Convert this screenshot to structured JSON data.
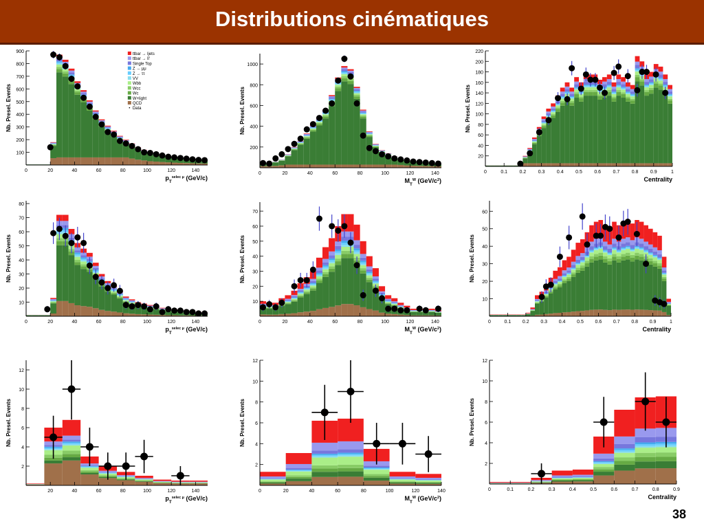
{
  "slide": {
    "title": "Distributions cinématiques",
    "page_number": "38"
  },
  "colors": {
    "title_bar": "#9b3300",
    "ttbar_ljets": "#f02020",
    "ttbar_ll": "#9999ee",
    "single_top": "#7777dd",
    "z_mumu": "#44aaee",
    "z_tautau": "#66ccff",
    "vv": "#88ddee",
    "wbb": "#aaee88",
    "wcc": "#88cc66",
    "wc": "#66aa44",
    "w_light": "#3a7d35",
    "qcd": "#a0704a",
    "data": "#000000",
    "error_bar": "#4444cc"
  },
  "chart_data": [
    {
      "type": "bar",
      "stacked": true,
      "xlabel": "p_T^{selec μ} (GeV/c)",
      "ylabel": "Nb. Presel. Events",
      "xlim": [
        0,
        150
      ],
      "ylim": [
        0,
        900
      ],
      "xticks": [
        0,
        20,
        40,
        60,
        80,
        100,
        120,
        140
      ],
      "yticks": [
        100,
        200,
        300,
        400,
        500,
        600,
        700,
        800,
        900
      ],
      "legend": {
        "position": "top-right",
        "entries": [
          "ttbar → ljets",
          "ttbar → ll'",
          "Single Top",
          "Z → μμ",
          "Z → ττ",
          "VV",
          "Wbb",
          "Wcc",
          "Wc",
          "W+light",
          "QCD",
          "Data"
        ]
      },
      "bins": [
        0,
        5,
        10,
        15,
        20,
        25,
        30,
        35,
        40,
        45,
        50,
        55,
        60,
        65,
        70,
        75,
        80,
        85,
        90,
        95,
        100,
        105,
        110,
        115,
        120,
        125,
        130,
        135,
        140,
        145,
        150
      ],
      "totals": [
        5,
        5,
        5,
        5,
        180,
        870,
        830,
        760,
        660,
        590,
        510,
        430,
        360,
        310,
        270,
        230,
        200,
        170,
        140,
        120,
        100,
        90,
        80,
        70,
        62,
        55,
        50,
        45,
        40,
        37,
        35
      ],
      "data_points": {
        "x": [
          20,
          22.5,
          27.5,
          32.5,
          37.5,
          42.5,
          47.5,
          52.5,
          57.5,
          62.5,
          67.5,
          72.5,
          77.5,
          82.5,
          87.5,
          92.5,
          97.5,
          102.5,
          107.5,
          112.5,
          117.5,
          122.5,
          127.5,
          132.5,
          137.5,
          142.5,
          147.5
        ],
        "y": [
          140,
          870,
          850,
          780,
          680,
          620,
          530,
          460,
          380,
          320,
          260,
          240,
          190,
          170,
          150,
          125,
          100,
          95,
          85,
          75,
          65,
          60,
          55,
          50,
          45,
          40,
          38
        ]
      },
      "fracs": {
        "qcd": 0.07,
        "w_light": 0.77,
        "wc": 0.03,
        "wcc": 0.02,
        "wbb": 0.02,
        "vv": 0.01,
        "z_tautau": 0.01,
        "z_mumu": 0.01,
        "single_top": 0.02,
        "ttbar_ll": 0.02,
        "ttbar_ljets": 0.02
      },
      "qcd_abs": 60
    },
    {
      "type": "bar",
      "stacked": true,
      "xlabel": "M_T^W (GeV/c^2)",
      "ylabel": "Nb. Presel. Events",
      "xlim": [
        0,
        145
      ],
      "ylim": [
        0,
        1100
      ],
      "xticks": [
        0,
        20,
        40,
        60,
        80,
        100,
        120,
        140
      ],
      "yticks": [
        200,
        400,
        600,
        800,
        1000
      ],
      "bins": [
        0,
        5,
        10,
        15,
        20,
        25,
        30,
        35,
        40,
        45,
        50,
        55,
        60,
        65,
        70,
        75,
        80,
        85,
        90,
        95,
        100,
        105,
        110,
        115,
        120,
        125,
        130,
        135,
        140,
        145
      ],
      "totals": [
        50,
        50,
        60,
        80,
        130,
        200,
        260,
        330,
        410,
        480,
        560,
        700,
        870,
        980,
        950,
        780,
        560,
        350,
        230,
        170,
        140,
        110,
        90,
        75,
        65,
        60,
        55,
        50,
        45
      ],
      "data_points": {
        "x": [
          2.5,
          7.5,
          12.5,
          17.5,
          22.5,
          27.5,
          32.5,
          37.5,
          42.5,
          47.5,
          52.5,
          57.5,
          62.5,
          67.5,
          72.5,
          77.5,
          82.5,
          87.5,
          92.5,
          97.5,
          102.5,
          107.5,
          112.5,
          117.5,
          122.5,
          127.5,
          132.5,
          137.5,
          142.5
        ],
        "y": [
          45,
          40,
          90,
          130,
          180,
          230,
          280,
          370,
          420,
          480,
          550,
          620,
          840,
          1050,
          880,
          620,
          310,
          190,
          160,
          130,
          110,
          90,
          80,
          70,
          60,
          55,
          50,
          45,
          40
        ]
      },
      "fracs": {
        "qcd": 0.05,
        "w_light": 0.8,
        "wc": 0.03,
        "wcc": 0.02,
        "wbb": 0.02,
        "vv": 0.01,
        "z_tautau": 0.01,
        "z_mumu": 0.01,
        "single_top": 0.02,
        "ttbar_ll": 0.015,
        "ttbar_ljets": 0.015
      },
      "qcd_abs": 30
    },
    {
      "type": "bar",
      "stacked": true,
      "xlabel": "Centrality",
      "ylabel": "Nb. Presel. Events",
      "xlim": [
        0,
        1.0
      ],
      "ylim": [
        0,
        220
      ],
      "xticks": [
        0,
        0.1,
        0.2,
        0.3,
        0.4,
        0.5,
        0.6,
        0.7,
        0.8,
        0.9,
        1
      ],
      "yticks": [
        20,
        40,
        60,
        80,
        100,
        120,
        140,
        160,
        180,
        200,
        220
      ],
      "bins": [
        0,
        0.025,
        0.05,
        0.075,
        0.1,
        0.125,
        0.15,
        0.175,
        0.2,
        0.225,
        0.25,
        0.275,
        0.3,
        0.325,
        0.35,
        0.375,
        0.4,
        0.425,
        0.45,
        0.475,
        0.5,
        0.525,
        0.55,
        0.575,
        0.6,
        0.625,
        0.65,
        0.675,
        0.7,
        0.725,
        0.75,
        0.775,
        0.8,
        0.825,
        0.85,
        0.875,
        0.9,
        0.925,
        0.95,
        0.975,
        1.0
      ],
      "totals": [
        2,
        2,
        2,
        2,
        2,
        2,
        2,
        3,
        20,
        35,
        55,
        75,
        95,
        110,
        120,
        135,
        150,
        160,
        150,
        170,
        160,
        175,
        175,
        175,
        165,
        170,
        175,
        160,
        175,
        170,
        160,
        155,
        210,
        200,
        175,
        180,
        195,
        190,
        175,
        155,
        150
      ],
      "data_points": {
        "x": [
          0.187,
          0.238,
          0.288,
          0.338,
          0.388,
          0.438,
          0.462,
          0.512,
          0.538,
          0.562,
          0.588,
          0.612,
          0.638,
          0.688,
          0.712,
          0.762,
          0.812,
          0.838,
          0.862,
          0.912,
          0.962
        ],
        "y": [
          5,
          25,
          65,
          88,
          130,
          128,
          187,
          148,
          175,
          165,
          165,
          150,
          140,
          178,
          190,
          172,
          145,
          180,
          180,
          175,
          140
        ]
      },
      "fracs": {
        "qcd": 0.05,
        "w_light": 0.72,
        "wc": 0.04,
        "wcc": 0.02,
        "wbb": 0.03,
        "vv": 0.01,
        "z_tautau": 0.01,
        "z_mumu": 0.01,
        "single_top": 0.03,
        "ttbar_ll": 0.03,
        "ttbar_ljets": 0.05
      },
      "qcd_abs": 6
    },
    {
      "type": "bar",
      "stacked": true,
      "xlabel": "p_T^{selec μ} (GeV/c)",
      "ylabel": "Nb. Presel. Events",
      "xlim": [
        0,
        150
      ],
      "ylim": [
        0,
        82
      ],
      "xticks": [
        0,
        20,
        40,
        60,
        80,
        100,
        120,
        140
      ],
      "yticks": [
        10,
        20,
        30,
        40,
        50,
        60,
        70,
        80
      ],
      "bins": [
        0,
        5,
        10,
        15,
        20,
        25,
        30,
        35,
        40,
        45,
        50,
        55,
        60,
        65,
        70,
        75,
        80,
        85,
        90,
        95,
        100,
        105,
        110,
        115,
        120,
        125,
        130,
        135,
        140,
        145,
        150
      ],
      "totals": [
        1,
        1,
        1,
        1,
        13,
        72,
        72,
        62,
        52,
        48,
        45,
        38,
        30,
        25,
        22,
        18,
        14,
        12,
        10,
        9,
        8,
        7,
        6,
        5,
        5,
        4,
        4,
        3,
        3,
        3,
        3
      ],
      "data_points": {
        "x": [
          17.5,
          22.5,
          27.5,
          32.5,
          37.5,
          42.5,
          47.5,
          52.5,
          57.5,
          62.5,
          67.5,
          72.5,
          77.5,
          82.5,
          87.5,
          92.5,
          97.5,
          102.5,
          107.5,
          112.5,
          117.5,
          122.5,
          127.5,
          132.5,
          137.5,
          142.5,
          147.5
        ],
        "y": [
          5,
          59,
          62,
          57,
          52,
          56,
          52,
          36,
          28,
          24,
          20,
          22,
          18,
          8,
          7,
          8,
          7,
          5,
          7,
          3,
          5,
          4,
          4,
          3,
          3,
          2,
          2
        ]
      },
      "fracs": {
        "qcd": 0.15,
        "w_light": 0.55,
        "wc": 0.04,
        "wcc": 0.03,
        "wbb": 0.04,
        "vv": 0.02,
        "z_tautau": 0.02,
        "z_mumu": 0.02,
        "single_top": 0.03,
        "ttbar_ll": 0.04,
        "ttbar_ljets": 0.06
      },
      "qcd_abs": 0
    },
    {
      "type": "bar",
      "stacked": true,
      "xlabel": "M_T^W (GeV/c^2)",
      "ylabel": "Nb. Presel. Events",
      "xlim": [
        0,
        145
      ],
      "ylim": [
        0,
        76
      ],
      "xticks": [
        0,
        20,
        40,
        60,
        80,
        100,
        120,
        140
      ],
      "yticks": [
        10,
        20,
        30,
        40,
        50,
        60,
        70
      ],
      "bins": [
        0,
        5,
        10,
        15,
        20,
        25,
        30,
        35,
        40,
        45,
        50,
        55,
        60,
        65,
        70,
        75,
        80,
        85,
        90,
        95,
        100,
        105,
        110,
        115,
        120,
        125,
        130,
        135,
        140,
        145
      ],
      "totals": [
        10,
        9,
        9,
        12,
        14,
        17,
        22,
        26,
        30,
        39,
        46,
        52,
        60,
        68,
        68,
        61,
        50,
        40,
        32,
        20,
        14,
        12,
        9,
        7,
        5,
        5,
        5,
        5,
        4
      ],
      "data_points": {
        "x": [
          2.5,
          7.5,
          12.5,
          17.5,
          27.5,
          32.5,
          37.5,
          42.5,
          47.5,
          57.5,
          62.5,
          67.5,
          72.5,
          77.5,
          82.5,
          92.5,
          97.5,
          102.5,
          107.5,
          112.5,
          117.5,
          127.5,
          132.5,
          142.5
        ],
        "y": [
          6,
          8,
          6,
          9,
          20,
          24,
          24,
          31,
          65,
          60,
          57,
          60,
          49,
          34,
          14,
          17,
          12,
          5,
          5,
          4,
          4,
          5,
          4,
          5
        ]
      },
      "fracs": {
        "qcd": 0.12,
        "w_light": 0.45,
        "wc": 0.04,
        "wcc": 0.03,
        "wbb": 0.04,
        "vv": 0.02,
        "z_tautau": 0.02,
        "z_mumu": 0.02,
        "single_top": 0.04,
        "ttbar_ll": 0.05,
        "ttbar_ljets": 0.17
      },
      "qcd_abs": 0
    },
    {
      "type": "bar",
      "stacked": true,
      "xlabel": "Centrality",
      "ylabel": "Nb. Presel. Events",
      "xlim": [
        0,
        1.0
      ],
      "ylim": [
        0,
        66
      ],
      "xticks": [
        0,
        0.1,
        0.2,
        0.3,
        0.4,
        0.5,
        0.6,
        0.7,
        0.8,
        0.9,
        1
      ],
      "yticks": [
        10,
        20,
        30,
        40,
        50,
        60
      ],
      "bins": [
        0,
        0.025,
        0.05,
        0.075,
        0.1,
        0.125,
        0.15,
        0.175,
        0.2,
        0.225,
        0.25,
        0.275,
        0.3,
        0.325,
        0.35,
        0.375,
        0.4,
        0.425,
        0.45,
        0.475,
        0.5,
        0.525,
        0.55,
        0.575,
        0.6,
        0.625,
        0.65,
        0.675,
        0.7,
        0.725,
        0.75,
        0.775,
        0.8,
        0.825,
        0.85,
        0.875,
        0.9,
        0.925,
        0.95,
        0.975,
        1.0
      ],
      "totals": [
        1,
        1,
        1,
        1,
        1,
        1,
        1,
        1,
        2,
        5,
        12,
        14,
        18,
        22,
        26,
        28,
        32,
        34,
        38,
        42,
        44,
        48,
        52,
        54,
        55,
        52,
        50,
        54,
        52,
        54,
        55,
        53,
        55,
        54,
        52,
        50,
        48,
        46,
        34,
        10,
        8
      ],
      "data_points": {
        "x": [
          0.288,
          0.312,
          0.338,
          0.388,
          0.438,
          0.512,
          0.538,
          0.588,
          0.612,
          0.638,
          0.662,
          0.712,
          0.738,
          0.762,
          0.812,
          0.862,
          0.912,
          0.938,
          0.962
        ],
        "y": [
          11,
          17,
          18,
          34,
          45,
          57,
          41,
          46,
          46,
          51,
          50,
          45,
          53,
          54,
          47,
          30,
          9,
          8,
          7
        ]
      },
      "fracs": {
        "qcd": 0.07,
        "w_light": 0.52,
        "wc": 0.04,
        "wcc": 0.03,
        "wbb": 0.04,
        "vv": 0.01,
        "z_tautau": 0.01,
        "z_mumu": 0.01,
        "single_top": 0.04,
        "ttbar_ll": 0.05,
        "ttbar_ljets": 0.18
      },
      "qcd_abs": 0
    },
    {
      "type": "bar",
      "stacked": true,
      "xlabel": "p_T^{selec μ} (GeV/c)",
      "ylabel": "Nb. Presel. Events",
      "xlim": [
        0,
        150
      ],
      "ylim": [
        0,
        13
      ],
      "xticks": [
        20,
        40,
        60,
        80,
        100,
        120,
        140
      ],
      "yticks": [
        2,
        4,
        6,
        8,
        10,
        12
      ],
      "bins": [
        0,
        15,
        30,
        45,
        60,
        75,
        90,
        105,
        120,
        135,
        150
      ],
      "totals": [
        0.2,
        6.0,
        6.8,
        3.0,
        2.0,
        1.4,
        1.0,
        0.6,
        0.5,
        0.5
      ],
      "data_points": {
        "x": [
          22.5,
          37.5,
          52.5,
          67.5,
          82.5,
          97.5,
          127.5
        ],
        "y": [
          5,
          10,
          4,
          2,
          2,
          3,
          1
        ]
      },
      "fracs": {
        "qcd": 0.38,
        "w_light": 0.05,
        "wc": 0.05,
        "wcc": 0.05,
        "wbb": 0.08,
        "vv": 0.02,
        "z_tautau": 0.02,
        "z_mumu": 0.02,
        "single_top": 0.03,
        "ttbar_ll": 0.06,
        "ttbar_ljets": 0.24
      },
      "qcd_abs": 0
    },
    {
      "type": "bar",
      "stacked": true,
      "xlabel": "M_T^W (GeV/c^2)",
      "ylabel": "Nb. Presel. Events",
      "xlim": [
        0,
        140
      ],
      "ylim": [
        0,
        12
      ],
      "xticks": [
        0,
        20,
        40,
        60,
        80,
        100,
        120,
        140
      ],
      "yticks": [
        2,
        4,
        6,
        8,
        10,
        12
      ],
      "bins": [
        0,
        20,
        40,
        60,
        80,
        100,
        120,
        140
      ],
      "totals": [
        1.3,
        3.1,
        6.2,
        6.4,
        3.5,
        1.3,
        1.1
      ],
      "data_points": {
        "x": [
          50,
          70,
          90,
          110,
          130
        ],
        "y": [
          7,
          9,
          4,
          4,
          3
        ]
      },
      "fracs": {
        "qcd": 0.13,
        "w_light": 0.08,
        "wc": 0.05,
        "wcc": 0.05,
        "wbb": 0.12,
        "vv": 0.02,
        "z_tautau": 0.02,
        "z_mumu": 0.02,
        "single_top": 0.05,
        "ttbar_ll": 0.12,
        "ttbar_ljets": 0.34
      },
      "qcd_abs": 0
    },
    {
      "type": "bar",
      "stacked": true,
      "xlabel": "Centrality",
      "ylabel": "Nb. Presel. Events",
      "xlim": [
        0,
        0.9
      ],
      "ylim": [
        0,
        12
      ],
      "xticks": [
        0,
        0.1,
        0.2,
        0.3,
        0.4,
        0.5,
        0.6,
        0.7,
        0.8,
        0.9
      ],
      "yticks": [
        2,
        4,
        6,
        8,
        10,
        12
      ],
      "bins": [
        0,
        0.1,
        0.2,
        0.3,
        0.4,
        0.5,
        0.6,
        0.7,
        0.8,
        0.9
      ],
      "totals": [
        0.2,
        0.2,
        0.6,
        1.3,
        1.4,
        4.6,
        7.2,
        8.4,
        8.5
      ],
      "data_points": {
        "x": [
          0.25,
          0.55,
          0.75,
          0.85
        ],
        "y": [
          1,
          6,
          8,
          6
        ]
      },
      "fracs": {
        "qcd": 0.18,
        "w_light": 0.08,
        "wc": 0.05,
        "wcc": 0.05,
        "wbb": 0.06,
        "vv": 0.02,
        "z_tautau": 0.02,
        "z_mumu": 0.02,
        "single_top": 0.06,
        "ttbar_ll": 0.1,
        "ttbar_ljets": 0.36
      },
      "qcd_abs": 0
    }
  ]
}
